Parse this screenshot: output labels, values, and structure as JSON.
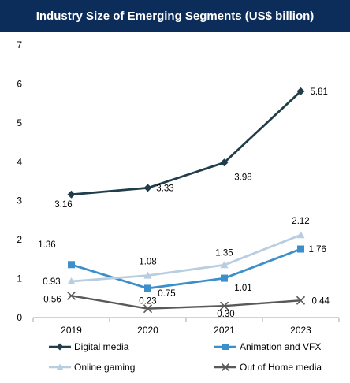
{
  "chart_data": {
    "type": "line",
    "title": "Industry Size of Emerging Segments (US$ billion)",
    "xlabel": "",
    "ylabel": "",
    "categories": [
      "2019",
      "2020",
      "2021",
      "2023"
    ],
    "ylim": [
      0,
      7
    ],
    "yticks": [
      "0",
      "1",
      "2",
      "3",
      "4",
      "5",
      "6",
      "7"
    ],
    "grid": false,
    "legend_position": "bottom",
    "series": [
      {
        "name": "Digital media",
        "values": [
          3.16,
          3.33,
          3.98,
          5.81
        ],
        "labels": [
          "3.16",
          "3.33",
          "3.98",
          "5.81"
        ],
        "color": "#213d4a",
        "marker": "diamond"
      },
      {
        "name": "Animation and VFX",
        "values": [
          1.36,
          0.75,
          1.01,
          1.76
        ],
        "labels": [
          "1.36",
          "0.75",
          "1.01",
          "1.76"
        ],
        "color": "#3b8fcb",
        "marker": "square"
      },
      {
        "name": "Online gaming",
        "values": [
          0.93,
          1.08,
          1.35,
          2.12
        ],
        "labels": [
          "0.93",
          "1.08",
          "1.35",
          "2.12"
        ],
        "color": "#b9cde0",
        "marker": "triangle"
      },
      {
        "name": "Out of Home media",
        "values": [
          0.56,
          0.23,
          0.3,
          0.44
        ],
        "labels": [
          "0.56",
          "0.23",
          "0.30",
          "0.44"
        ],
        "color": "#595959",
        "marker": "x"
      }
    ]
  }
}
